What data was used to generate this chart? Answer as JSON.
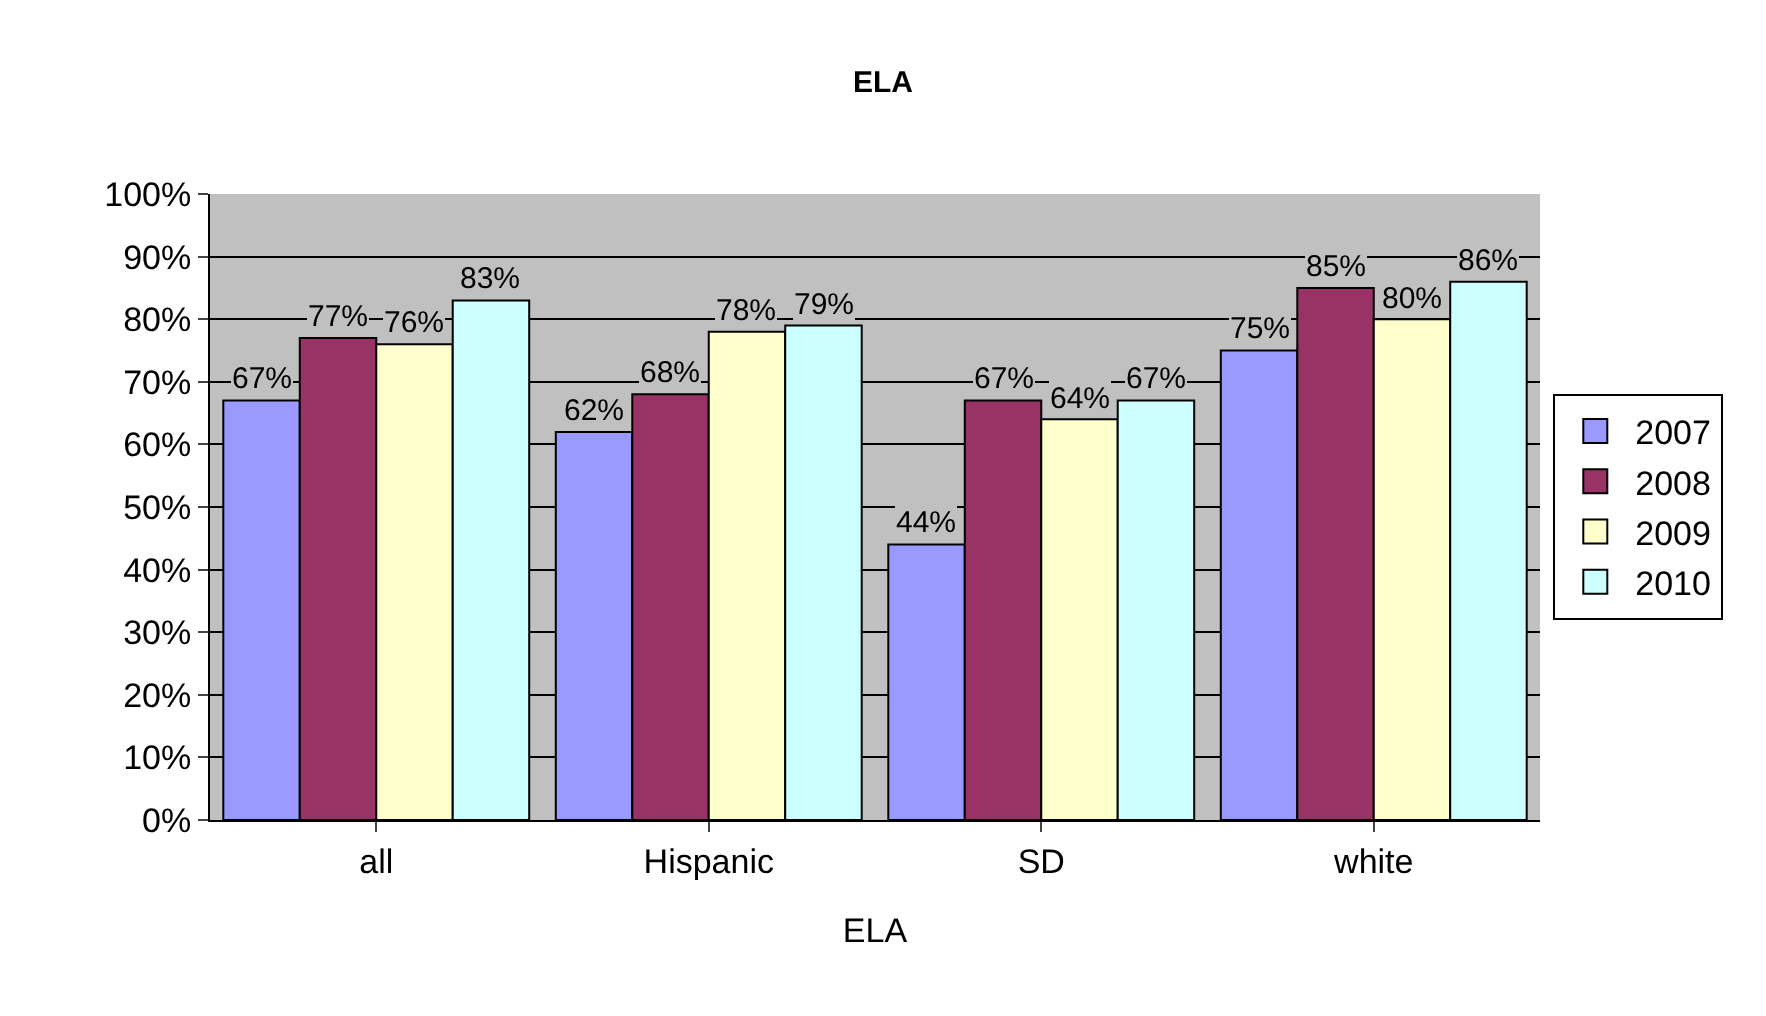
{
  "chart_data": {
    "type": "bar",
    "title": "ELA",
    "xlabel": "ELA",
    "categories": [
      "all",
      "Hispanic",
      "SD",
      "white"
    ],
    "series": [
      {
        "name": "2007",
        "color": "#9999ff",
        "values": [
          67,
          62,
          44,
          75
        ],
        "value_labels": [
          "67%",
          "62%",
          "44%",
          "75%"
        ]
      },
      {
        "name": "2008",
        "color": "#993366",
        "values": [
          77,
          68,
          67,
          85
        ],
        "value_labels": [
          "77%",
          "68%",
          "67%",
          "85%"
        ]
      },
      {
        "name": "2009",
        "color": "#ffffcc",
        "values": [
          76,
          78,
          64,
          80
        ],
        "value_labels": [
          "76%",
          "78%",
          "64%",
          "80%"
        ]
      },
      {
        "name": "2010",
        "color": "#ccffff",
        "values": [
          83,
          79,
          67,
          86
        ],
        "value_labels": [
          "83%",
          "79%",
          "67%",
          "86%"
        ]
      }
    ],
    "ylim": [
      0,
      100
    ],
    "yticks": [
      {
        "value": 0,
        "label": "0%"
      },
      {
        "value": 10,
        "label": "10%"
      },
      {
        "value": 20,
        "label": "20%"
      },
      {
        "value": 30,
        "label": "30%"
      },
      {
        "value": 40,
        "label": "40%"
      },
      {
        "value": 50,
        "label": "50%"
      },
      {
        "value": 60,
        "label": "60%"
      },
      {
        "value": 70,
        "label": "70%"
      },
      {
        "value": 80,
        "label": "80%"
      },
      {
        "value": 90,
        "label": "90%"
      },
      {
        "value": 100,
        "label": "100%"
      }
    ],
    "grid": "y",
    "legend": "right"
  }
}
